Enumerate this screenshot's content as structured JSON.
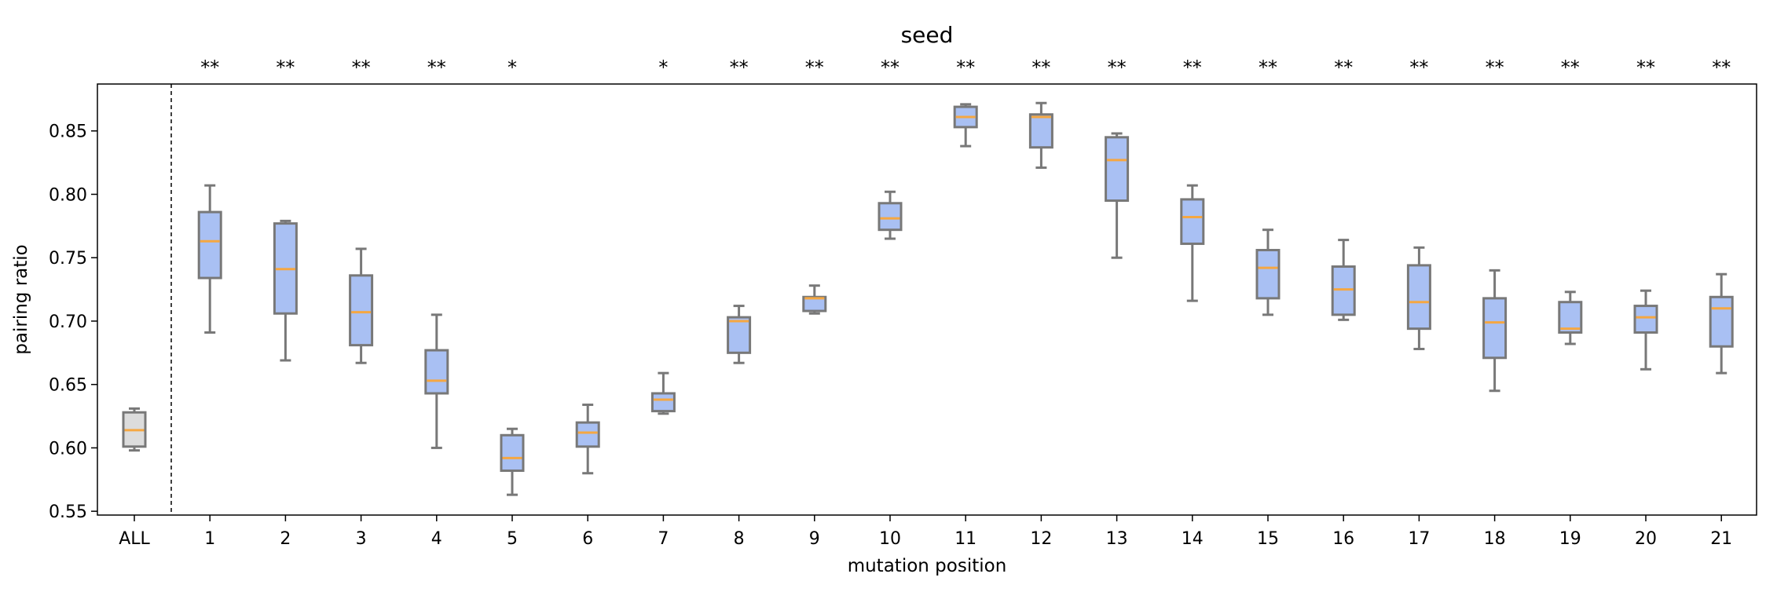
{
  "chart_data": {
    "type": "box",
    "title": "seed",
    "xlabel": "mutation position",
    "ylabel": "pairing ratio",
    "ylim": [
      0.547,
      0.887
    ],
    "yticks": [
      0.55,
      0.6,
      0.65,
      0.7,
      0.75,
      0.8,
      0.85
    ],
    "ytick_labels": [
      "0.55",
      "0.60",
      "0.65",
      "0.70",
      "0.75",
      "0.80",
      "0.85"
    ],
    "grid": false,
    "colors": {
      "box_fill": "#a9c0f3",
      "baseline_fill": "#dcdcdc",
      "box_edge": "#787878",
      "median": "#f5a742"
    },
    "boxes": [
      {
        "label": "ALL",
        "whislo": 0.598,
        "q1": 0.601,
        "med": 0.614,
        "q3": 0.628,
        "whishi": 0.631,
        "sig": ""
      },
      {
        "label": "1",
        "whislo": 0.691,
        "q1": 0.734,
        "med": 0.763,
        "q3": 0.786,
        "whishi": 0.807,
        "sig": "**"
      },
      {
        "label": "2",
        "whislo": 0.669,
        "q1": 0.706,
        "med": 0.741,
        "q3": 0.777,
        "whishi": 0.779,
        "sig": "**"
      },
      {
        "label": "3",
        "whislo": 0.667,
        "q1": 0.681,
        "med": 0.707,
        "q3": 0.736,
        "whishi": 0.757,
        "sig": "**"
      },
      {
        "label": "4",
        "whislo": 0.6,
        "q1": 0.643,
        "med": 0.653,
        "q3": 0.677,
        "whishi": 0.705,
        "sig": "**"
      },
      {
        "label": "5",
        "whislo": 0.563,
        "q1": 0.582,
        "med": 0.592,
        "q3": 0.61,
        "whishi": 0.615,
        "sig": "*"
      },
      {
        "label": "6",
        "whislo": 0.58,
        "q1": 0.601,
        "med": 0.612,
        "q3": 0.62,
        "whishi": 0.634,
        "sig": ""
      },
      {
        "label": "7",
        "whislo": 0.627,
        "q1": 0.629,
        "med": 0.638,
        "q3": 0.643,
        "whishi": 0.659,
        "sig": "*"
      },
      {
        "label": "8",
        "whislo": 0.667,
        "q1": 0.675,
        "med": 0.7,
        "q3": 0.703,
        "whishi": 0.712,
        "sig": "**"
      },
      {
        "label": "9",
        "whislo": 0.706,
        "q1": 0.708,
        "med": 0.718,
        "q3": 0.719,
        "whishi": 0.728,
        "sig": "**"
      },
      {
        "label": "10",
        "whislo": 0.765,
        "q1": 0.772,
        "med": 0.781,
        "q3": 0.793,
        "whishi": 0.802,
        "sig": "**"
      },
      {
        "label": "11",
        "whislo": 0.838,
        "q1": 0.853,
        "med": 0.861,
        "q3": 0.869,
        "whishi": 0.871,
        "sig": "**"
      },
      {
        "label": "12",
        "whislo": 0.821,
        "q1": 0.837,
        "med": 0.861,
        "q3": 0.863,
        "whishi": 0.872,
        "sig": "**"
      },
      {
        "label": "13",
        "whislo": 0.75,
        "q1": 0.795,
        "med": 0.827,
        "q3": 0.845,
        "whishi": 0.848,
        "sig": "**"
      },
      {
        "label": "14",
        "whislo": 0.716,
        "q1": 0.761,
        "med": 0.782,
        "q3": 0.796,
        "whishi": 0.807,
        "sig": "**"
      },
      {
        "label": "15",
        "whislo": 0.705,
        "q1": 0.718,
        "med": 0.742,
        "q3": 0.756,
        "whishi": 0.772,
        "sig": "**"
      },
      {
        "label": "16",
        "whislo": 0.701,
        "q1": 0.705,
        "med": 0.725,
        "q3": 0.743,
        "whishi": 0.764,
        "sig": "**"
      },
      {
        "label": "17",
        "whislo": 0.678,
        "q1": 0.694,
        "med": 0.715,
        "q3": 0.744,
        "whishi": 0.758,
        "sig": "**"
      },
      {
        "label": "18",
        "whislo": 0.645,
        "q1": 0.671,
        "med": 0.699,
        "q3": 0.718,
        "whishi": 0.74,
        "sig": "**"
      },
      {
        "label": "19",
        "whislo": 0.682,
        "q1": 0.691,
        "med": 0.694,
        "q3": 0.715,
        "whishi": 0.723,
        "sig": "**"
      },
      {
        "label": "20",
        "whislo": 0.662,
        "q1": 0.691,
        "med": 0.703,
        "q3": 0.712,
        "whishi": 0.724,
        "sig": "**"
      },
      {
        "label": "21",
        "whislo": 0.659,
        "q1": 0.68,
        "med": 0.71,
        "q3": 0.719,
        "whishi": 0.737,
        "sig": "**"
      }
    ]
  }
}
